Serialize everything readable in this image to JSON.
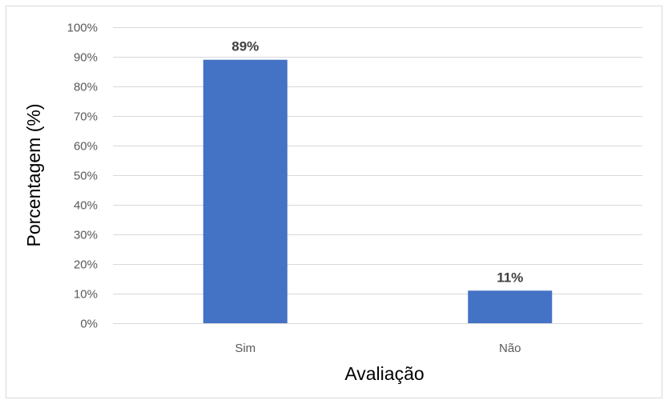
{
  "chart_data": {
    "type": "bar",
    "title": "",
    "xlabel": "Avaliação",
    "ylabel": "Porcentagem (%)",
    "categories": [
      "Sim",
      "Não"
    ],
    "values": [
      89,
      11
    ],
    "data_labels": [
      "89%",
      "11%"
    ],
    "ylim": [
      0,
      100
    ],
    "yticks": [
      0,
      10,
      20,
      30,
      40,
      50,
      60,
      70,
      80,
      90,
      100
    ],
    "ytick_labels": [
      "0%",
      "10%",
      "20%",
      "30%",
      "40%",
      "50%",
      "60%",
      "70%",
      "80%",
      "90%",
      "100%"
    ],
    "grid": true,
    "legend": "none",
    "colors": {
      "bar": "#4472c4",
      "grid": "#d9d9d9",
      "tick_text": "#595959",
      "data_label_text": "#404040"
    }
  }
}
